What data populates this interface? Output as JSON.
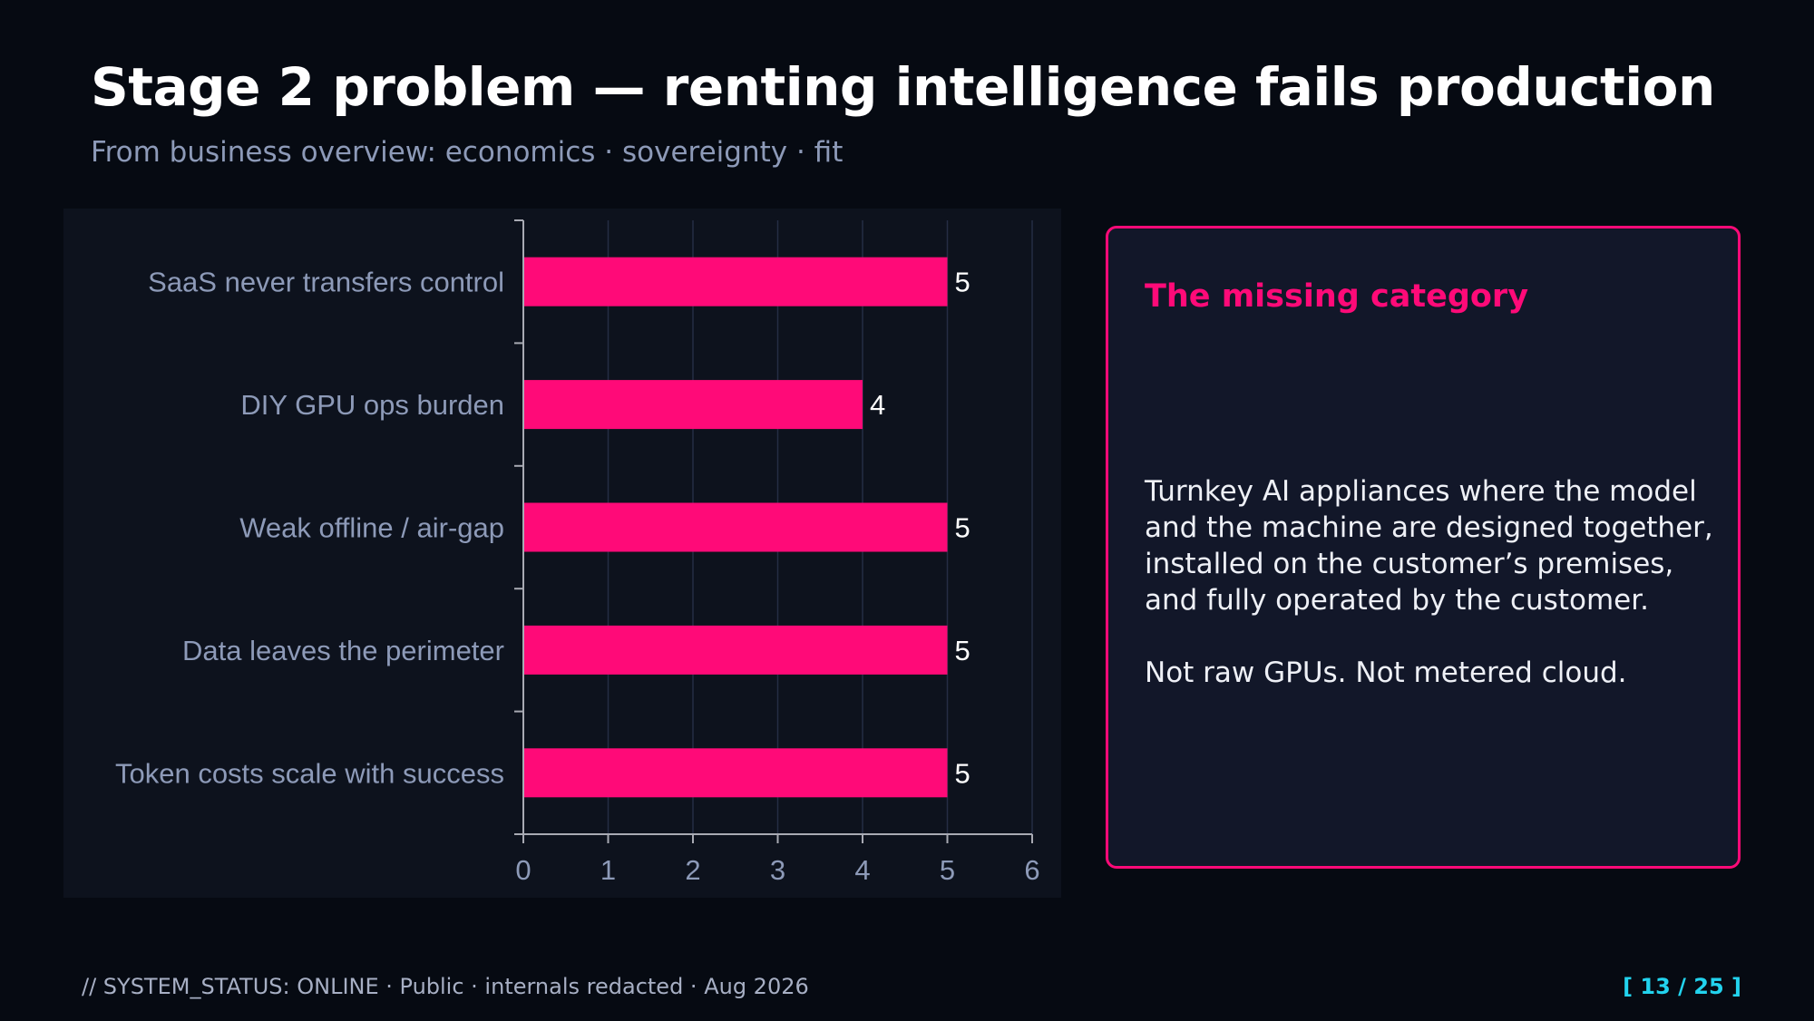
{
  "slide": {
    "title": "Stage 2 problem — renting intelligence fails production",
    "subtitle": "From business overview: economics · sovereignty · fit"
  },
  "chart_data": {
    "type": "bar",
    "orientation": "horizontal",
    "categories": [
      "SaaS never transfers control",
      "DIY GPU ops burden",
      "Weak offline / air-gap",
      "Data leaves the perimeter",
      "Token costs scale with success"
    ],
    "values": [
      5,
      4,
      5,
      5,
      5
    ],
    "data_labels": [
      "5",
      "4",
      "5",
      "5",
      "5"
    ],
    "xlim": [
      0,
      6
    ],
    "x_ticks": [
      0,
      1,
      2,
      3,
      4,
      5,
      6
    ],
    "grid": "vertical",
    "legend": "none",
    "title": "",
    "xlabel": "",
    "ylabel": "",
    "bar_color": "#ff0a78"
  },
  "callout": {
    "heading": "The missing category",
    "paragraph1": "Turnkey AI appliances where the model and the machine are designed together, installed on the customer’s premises, and fully operated by the customer.",
    "paragraph2": "Not raw GPUs. Not metered cloud."
  },
  "footer": {
    "left": "// SYSTEM_STATUS: ONLINE  ·  Public · internals redacted · Aug 2026",
    "page": "[ 13 / 25 ]"
  },
  "colors": {
    "background": "#060a12",
    "panel": "#0d121d",
    "accent": "#ff0a78",
    "page_indicator": "#22d3ee"
  }
}
